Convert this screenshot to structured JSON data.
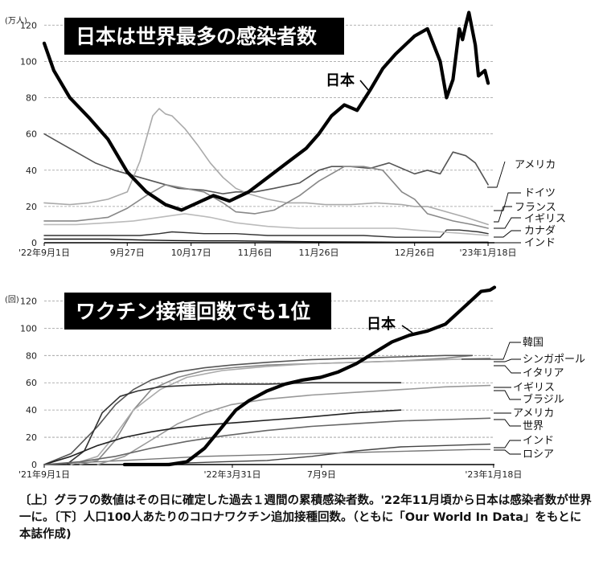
{
  "caption": "〔上〕グラフの数値はその日に確定した過去１週間の累積感染者数。'22年11月頃から日本は感染者数が世界一に。〔下〕人口100人あたりのコロナワクチン追加接種回数。（ともに「Our World In Data」をもとに本誌作成)",
  "chart_data": [
    {
      "type": "line",
      "title": "日本は世界最多の感染者数",
      "unit_label": "(万人)",
      "ylim": [
        0,
        125
      ],
      "yticks": [
        "0",
        "20",
        "40",
        "60",
        "80",
        "100",
        "120"
      ],
      "ytick_values": [
        0,
        20,
        40,
        60,
        80,
        100,
        120
      ],
      "xlim": [
        0,
        141
      ],
      "xticks": [
        "'22年9月1日",
        "9月27日",
        "10月17日",
        "11月6日",
        "11月26日",
        "12月26日",
        "'23年1月18日"
      ],
      "xtick_values": [
        0,
        26,
        46,
        66,
        86,
        116,
        139
      ],
      "series": [
        {
          "name": "日本",
          "color": "#000000",
          "width": 4.2,
          "x": [
            0,
            3,
            8,
            14,
            20,
            26,
            32,
            38,
            43,
            48,
            53,
            58,
            64,
            70,
            76,
            82,
            86,
            90,
            94,
            98,
            102,
            106,
            110,
            116,
            120,
            124,
            126,
            128,
            130,
            131,
            132,
            133,
            135,
            136,
            138,
            139
          ],
          "y": [
            110,
            95,
            80,
            69,
            57,
            39,
            28,
            21,
            18,
            22,
            26,
            23,
            28,
            36,
            44,
            52,
            60,
            70,
            76,
            73,
            84,
            96,
            104,
            114,
            118,
            100,
            80,
            90,
            118,
            112,
            120,
            127,
            109,
            92,
            95,
            88
          ]
        },
        {
          "name": "アメリカ",
          "color": "#555555",
          "width": 1.6,
          "x": [
            0,
            4,
            10,
            16,
            22,
            26,
            34,
            42,
            50,
            56,
            60,
            66,
            72,
            80,
            86,
            90,
            96,
            102,
            108,
            112,
            116,
            120,
            124,
            128,
            132,
            135,
            139
          ],
          "y": [
            60,
            56,
            50,
            44,
            40,
            38,
            34,
            30,
            29,
            27,
            28,
            28,
            30,
            33,
            40,
            42,
            42,
            41,
            44,
            41,
            38,
            40,
            38,
            50,
            48,
            44,
            32
          ]
        },
        {
          "name": "ドイツ",
          "color": "#aaaaaa",
          "width": 1.6,
          "x": [
            0,
            8,
            14,
            20,
            26,
            30,
            34,
            36,
            38,
            40,
            44,
            48,
            52,
            56,
            60,
            64,
            70,
            76,
            82,
            88,
            96,
            104,
            112,
            116,
            120,
            124,
            128,
            132,
            139
          ],
          "y": [
            22,
            21,
            22,
            24,
            28,
            45,
            70,
            74,
            71,
            70,
            63,
            54,
            44,
            36,
            30,
            27,
            24,
            22,
            22,
            21,
            21,
            22,
            21,
            20,
            20,
            18,
            16,
            14,
            10
          ]
        },
        {
          "name": "フランス",
          "color": "#888888",
          "width": 1.6,
          "x": [
            0,
            10,
            20,
            26,
            32,
            38,
            44,
            50,
            56,
            60,
            66,
            72,
            80,
            86,
            94,
            100,
            106,
            112,
            116,
            120,
            128,
            134,
            139
          ],
          "y": [
            12,
            12,
            14,
            19,
            26,
            32,
            30,
            28,
            22,
            17,
            16,
            18,
            26,
            34,
            42,
            42,
            40,
            28,
            24,
            16,
            12,
            10,
            8
          ]
        },
        {
          "name": "イギリス",
          "color": "#bbbbbb",
          "width": 1.6,
          "x": [
            0,
            10,
            20,
            28,
            36,
            44,
            52,
            60,
            70,
            80,
            90,
            100,
            110,
            116,
            124,
            132,
            139
          ],
          "y": [
            10,
            10,
            11,
            12,
            14,
            16,
            14,
            11,
            9,
            8,
            8,
            8,
            8,
            7,
            6,
            5,
            4
          ]
        },
        {
          "name": "カナダ",
          "color": "#333333",
          "width": 1.4,
          "x": [
            0,
            10,
            20,
            30,
            36,
            40,
            50,
            60,
            70,
            80,
            90,
            100,
            110,
            118,
            124,
            126,
            130,
            136,
            139
          ],
          "y": [
            4,
            4,
            4,
            4,
            5,
            6,
            5,
            5,
            4,
            4,
            4,
            4,
            3,
            3,
            3,
            7,
            7,
            6,
            5
          ]
        },
        {
          "name": "インド",
          "color": "#111111",
          "width": 1.4,
          "x": [
            0,
            10,
            20,
            30,
            40,
            50,
            60,
            70,
            80,
            90,
            100,
            110,
            120,
            130,
            139
          ],
          "y": [
            2,
            2,
            2,
            1.5,
            1.2,
            1,
            1,
            0.8,
            0.6,
            0.5,
            0.4,
            0.3,
            0.3,
            0.3,
            0.3
          ]
        }
      ]
    },
    {
      "type": "line",
      "title": "ワクチン接種回数でも1位",
      "unit_label": "(回)",
      "ylim": [
        0,
        125
      ],
      "yticks": [
        "0",
        "20",
        "40",
        "60",
        "80",
        "100",
        "120"
      ],
      "ytick_values": [
        0,
        20,
        40,
        60,
        80,
        100,
        120
      ],
      "xlim": [
        0,
        505
      ],
      "xticks": [
        "'21年9月1日",
        "'22年3月31日",
        "7月9日",
        "'23年1月18日"
      ],
      "xtick_values": [
        0,
        211,
        311,
        504
      ],
      "series": [
        {
          "name": "日本",
          "color": "#000000",
          "width": 4.2,
          "x": [
            90,
            140,
            160,
            180,
            200,
            215,
            230,
            250,
            270,
            290,
            310,
            330,
            350,
            370,
            390,
            410,
            430,
            450,
            470,
            490,
            500,
            505
          ],
          "y": [
            0,
            0,
            2,
            12,
            28,
            40,
            47,
            54,
            59,
            62,
            64,
            68,
            74,
            82,
            90,
            95,
            98,
            103,
            115,
            127,
            128,
            130
          ]
        },
        {
          "name": "韓国",
          "color": "#888888",
          "width": 1.6,
          "x": [
            40,
            60,
            80,
            100,
            120,
            150,
            180,
            210,
            250,
            300,
            350,
            400,
            450,
            480
          ],
          "y": [
            0,
            3,
            18,
            40,
            55,
            64,
            69,
            71,
            73,
            74,
            75,
            76,
            78,
            80
          ]
        },
        {
          "name": "シンガポール",
          "color": "#555555",
          "width": 1.6,
          "x": [
            0,
            30,
            60,
            80,
            100,
            120,
            150,
            180,
            210,
            250,
            300,
            350,
            400,
            450,
            480
          ],
          "y": [
            0,
            8,
            28,
            44,
            55,
            62,
            68,
            71,
            73,
            75,
            77,
            78,
            79,
            80,
            80
          ]
        },
        {
          "name": "イタリア",
          "color": "#aaaaaa",
          "width": 1.6,
          "x": [
            30,
            60,
            80,
            100,
            130,
            160,
            200,
            250,
            300,
            350,
            400,
            450,
            500
          ],
          "y": [
            0,
            6,
            22,
            40,
            55,
            64,
            69,
            72,
            74,
            75,
            76,
            77,
            78
          ]
        },
        {
          "name": "イギリス",
          "color": "#333333",
          "width": 1.6,
          "x": [
            25,
            45,
            65,
            85,
            105,
            130,
            160,
            200,
            250,
            300,
            350,
            400
          ],
          "y": [
            0,
            10,
            38,
            50,
            54,
            57,
            58,
            59,
            59,
            60,
            60,
            60
          ]
        },
        {
          "name": "ブラジル",
          "color": "#999999",
          "width": 1.6,
          "x": [
            60,
            90,
            120,
            150,
            180,
            210,
            250,
            300,
            350,
            400,
            450,
            500
          ],
          "y": [
            0,
            6,
            18,
            30,
            38,
            44,
            48,
            51,
            53,
            55,
            57,
            58
          ]
        },
        {
          "name": "アメリカ",
          "color": "#222222",
          "width": 1.6,
          "x": [
            0,
            30,
            60,
            90,
            120,
            150,
            180,
            220,
            260,
            300,
            350,
            400
          ],
          "y": [
            0,
            6,
            14,
            20,
            24,
            27,
            29,
            31,
            33,
            35,
            38,
            40
          ]
        },
        {
          "name": "世界",
          "color": "#666666",
          "width": 1.6,
          "x": [
            0,
            40,
            80,
            120,
            160,
            200,
            250,
            300,
            350,
            400,
            450,
            500
          ],
          "y": [
            0,
            2,
            6,
            12,
            17,
            21,
            25,
            28,
            30,
            32,
            33,
            34
          ]
        },
        {
          "name": "インド",
          "color": "#444444",
          "width": 1.4,
          "x": [
            90,
            150,
            200,
            250,
            300,
            350,
            400,
            450,
            500
          ],
          "y": [
            0,
            1,
            2,
            3,
            6,
            10,
            13,
            14,
            15
          ]
        },
        {
          "name": "ロシア",
          "color": "#777777",
          "width": 1.4,
          "x": [
            0,
            60,
            120,
            180,
            240,
            300,
            360,
            420,
            480,
            500
          ],
          "y": [
            0,
            2,
            4,
            6,
            7,
            8,
            9,
            10,
            11,
            11
          ]
        }
      ]
    }
  ]
}
